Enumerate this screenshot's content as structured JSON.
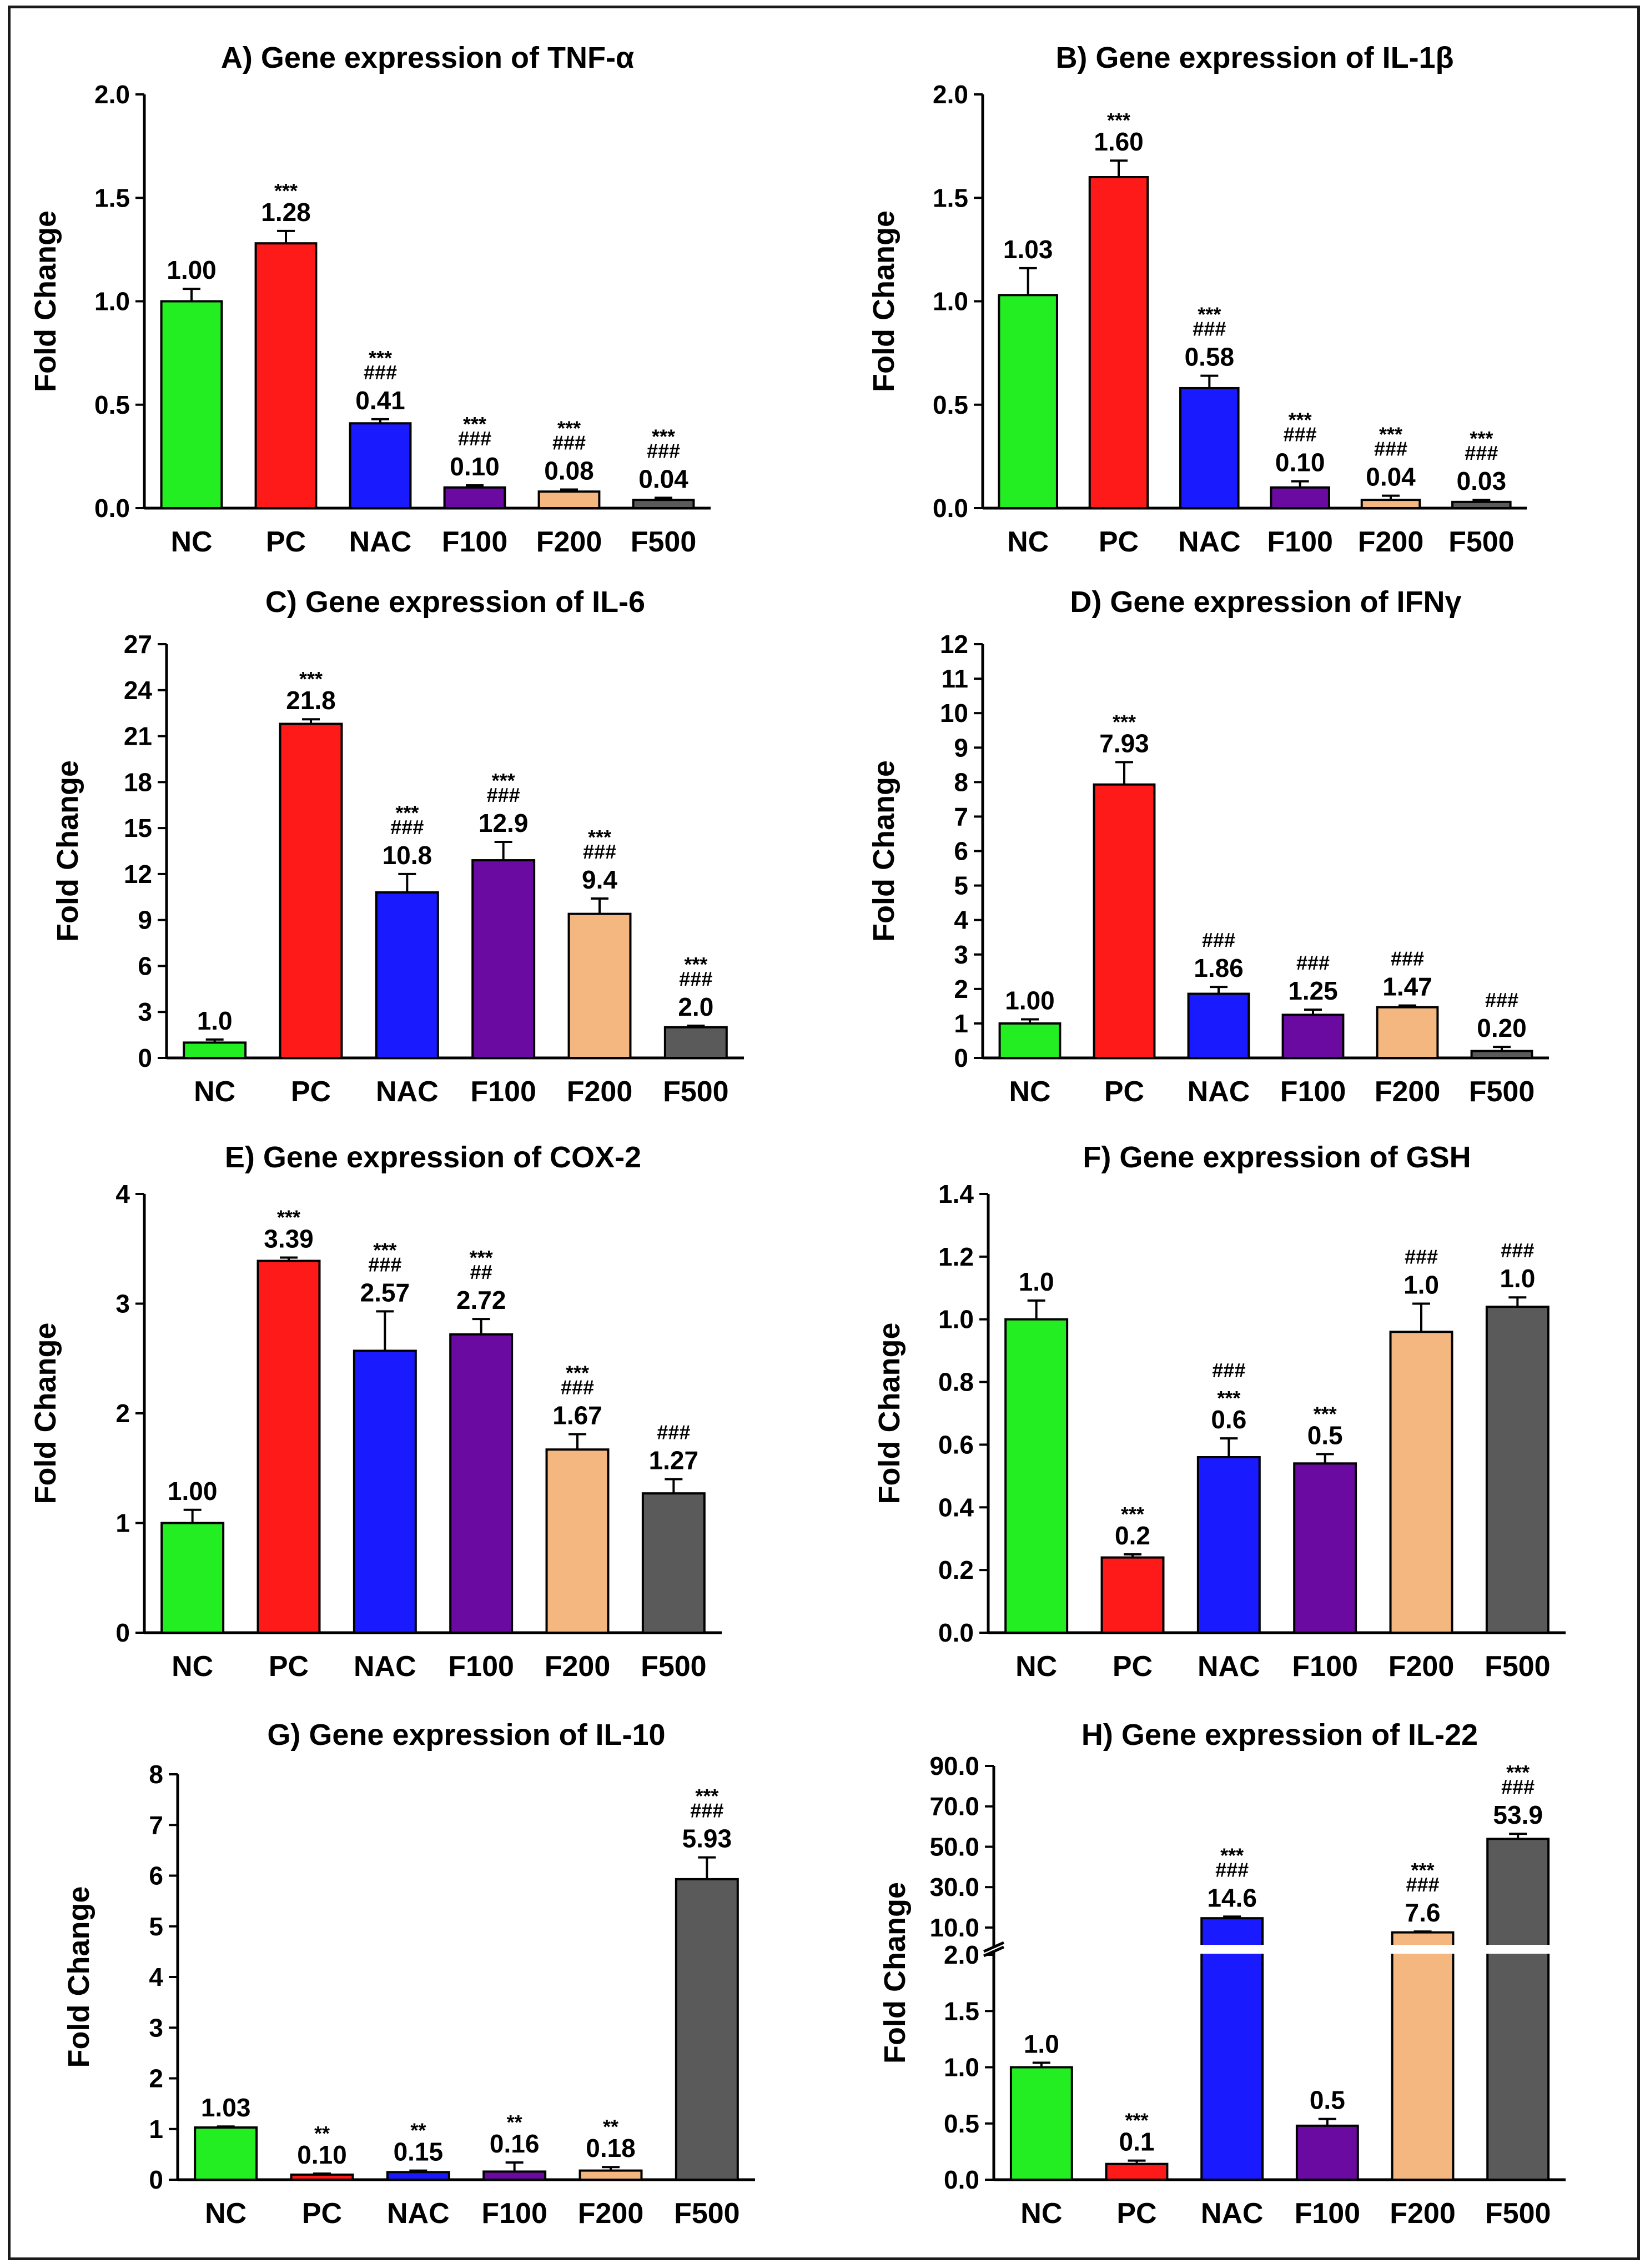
{
  "chart_data": [
    {
      "type": "bar",
      "panel": "A",
      "title": "A) Gene expression of TNF-α",
      "ylabel": "Fold Change",
      "categories": [
        "NC",
        "PC",
        "NAC",
        "F100",
        "F200",
        "F500"
      ],
      "values": [
        1.0,
        1.28,
        0.41,
        0.1,
        0.08,
        0.04
      ],
      "errors": [
        0.06,
        0.06,
        0.02,
        0.01,
        0.01,
        0.01
      ],
      "labels": [
        "1.00",
        "1.28",
        "0.41",
        "0.10",
        "0.08",
        "0.04"
      ],
      "significance": [
        [],
        [
          "***"
        ],
        [
          "***",
          "###"
        ],
        [
          "***",
          "###"
        ],
        [
          "***",
          "###"
        ],
        [
          "***",
          "###"
        ]
      ],
      "ylim": [
        0,
        2.0
      ],
      "yticks": [
        "0.0",
        "0.5",
        "1.0",
        "1.5",
        "2.0"
      ]
    },
    {
      "type": "bar",
      "panel": "B",
      "title": "B) Gene expression of IL-1β",
      "ylabel": "Fold Change",
      "categories": [
        "NC",
        "PC",
        "NAC",
        "F100",
        "F200",
        "F500"
      ],
      "values": [
        1.03,
        1.6,
        0.58,
        0.1,
        0.04,
        0.03
      ],
      "errors": [
        0.13,
        0.08,
        0.06,
        0.03,
        0.02,
        0.01
      ],
      "labels": [
        "1.03",
        "1.60",
        "0.58",
        "0.10",
        "0.04",
        "0.03"
      ],
      "significance": [
        [],
        [
          "***"
        ],
        [
          "***",
          "###"
        ],
        [
          "***",
          "###"
        ],
        [
          "***",
          "###"
        ],
        [
          "***",
          "###"
        ]
      ],
      "ylim": [
        0,
        2.0
      ],
      "yticks": [
        "0.0",
        "0.5",
        "1.0",
        "1.5",
        "2.0"
      ]
    },
    {
      "type": "bar",
      "panel": "C",
      "title": "C) Gene expression of IL-6",
      "ylabel": "Fold Change",
      "categories": [
        "NC",
        "PC",
        "NAC",
        "F100",
        "F200",
        "F500"
      ],
      "values": [
        1.0,
        21.8,
        10.8,
        12.9,
        9.4,
        2.0
      ],
      "errors": [
        0.2,
        0.3,
        1.2,
        1.2,
        1.0,
        0.1
      ],
      "labels": [
        "1.0",
        "21.8",
        "10.8",
        "12.9",
        "9.4",
        "2.0"
      ],
      "significance": [
        [],
        [
          "***"
        ],
        [
          "***",
          "###"
        ],
        [
          "***",
          "###"
        ],
        [
          "***",
          "###"
        ],
        [
          "***",
          "###"
        ]
      ],
      "ylim": [
        0,
        27
      ],
      "yticks": [
        "0",
        "3",
        "6",
        "9",
        "12",
        "15",
        "18",
        "21",
        "24",
        "27"
      ]
    },
    {
      "type": "bar",
      "panel": "D",
      "title": "D) Gene expression of IFNγ",
      "ylabel": "Fold Change",
      "categories": [
        "NC",
        "PC",
        "NAC",
        "F100",
        "F200",
        "F500"
      ],
      "values": [
        1.0,
        7.93,
        1.86,
        1.25,
        1.47,
        0.2
      ],
      "errors": [
        0.12,
        0.65,
        0.2,
        0.15,
        0.05,
        0.12
      ],
      "labels": [
        "1.00",
        "7.93",
        "1.86",
        "1.25",
        "1.47",
        "0.20"
      ],
      "significance": [
        [],
        [
          "***"
        ],
        [
          "###"
        ],
        [
          "###"
        ],
        [
          "###"
        ],
        [
          "###"
        ]
      ],
      "ylim": [
        0,
        12
      ],
      "yticks": [
        "0",
        "1",
        "2",
        "3",
        "4",
        "5",
        "6",
        "7",
        "8",
        "9",
        "10",
        "11",
        "12"
      ]
    },
    {
      "type": "bar",
      "panel": "E",
      "title": "E) Gene expression of COX-2",
      "ylabel": "Fold Change",
      "categories": [
        "NC",
        "PC",
        "NAC",
        "F100",
        "F200",
        "F500"
      ],
      "values": [
        1.0,
        3.39,
        2.57,
        2.72,
        1.67,
        1.27
      ],
      "errors": [
        0.12,
        0.03,
        0.36,
        0.14,
        0.14,
        0.13
      ],
      "labels": [
        "1.00",
        "3.39",
        "2.57",
        "2.72",
        "1.67",
        "1.27"
      ],
      "significance": [
        [],
        [
          "***"
        ],
        [
          "***",
          "###"
        ],
        [
          "***",
          "##"
        ],
        [
          "***",
          "###"
        ],
        [
          "###"
        ]
      ],
      "ylim": [
        0,
        4
      ],
      "yticks": [
        "0",
        "1",
        "2",
        "3",
        "4"
      ]
    },
    {
      "type": "bar",
      "panel": "F",
      "title": "F) Gene expression of GSH",
      "ylabel": "Fold Change",
      "categories": [
        "NC",
        "PC",
        "NAC",
        "F100",
        "F200",
        "F500"
      ],
      "values": [
        1.0,
        0.24,
        0.56,
        0.54,
        0.96,
        1.04
      ],
      "errors": [
        0.06,
        0.01,
        0.06,
        0.03,
        0.09,
        0.03
      ],
      "labels": [
        "1.0",
        "0.2",
        "0.6",
        "0.5",
        "1.0",
        "1.0"
      ],
      "significance": [
        [],
        [
          "***"
        ],
        [
          "###",
          "***"
        ],
        [
          "***"
        ],
        [
          "###"
        ],
        [
          "###"
        ]
      ],
      "ylim": [
        0,
        1.4
      ],
      "yticks": [
        "0.0",
        "0.2",
        "0.4",
        "0.6",
        "0.8",
        "1.0",
        "1.2",
        "1.4"
      ]
    },
    {
      "type": "bar",
      "panel": "G",
      "title": "G) Gene expression of IL-10",
      "ylabel": "Fold Change",
      "categories": [
        "NC",
        "PC",
        "NAC",
        "F100",
        "F200",
        "F500"
      ],
      "values": [
        1.03,
        0.1,
        0.15,
        0.16,
        0.18,
        5.93
      ],
      "errors": [
        0.02,
        0.02,
        0.03,
        0.18,
        0.07,
        0.43
      ],
      "labels": [
        "1.03",
        "0.10",
        "0.15",
        "0.16",
        "0.18",
        "5.93"
      ],
      "significance": [
        [],
        [
          "**"
        ],
        [
          "**"
        ],
        [
          "**"
        ],
        [
          "**"
        ],
        [
          "***",
          "###"
        ]
      ],
      "ylim": [
        0,
        8
      ],
      "yticks": [
        "0",
        "1",
        "2",
        "3",
        "4",
        "5",
        "6",
        "7",
        "8"
      ]
    },
    {
      "type": "bar",
      "panel": "H",
      "axis_break": true,
      "title": "H) Gene expression of IL-22",
      "ylabel": "Fold Change",
      "categories": [
        "NC",
        "PC",
        "NAC",
        "F100",
        "F200",
        "F500"
      ],
      "values": [
        1.0,
        0.14,
        14.6,
        0.48,
        7.6,
        53.9
      ],
      "errors": [
        0.04,
        0.03,
        0.8,
        0.06,
        0.4,
        2.5
      ],
      "labels": [
        "1.0",
        "0.1",
        "14.6",
        "0.5",
        "7.6",
        "53.9"
      ],
      "significance": [
        [],
        [
          "***"
        ],
        [
          "***",
          "###"
        ],
        [],
        [
          "***",
          "###"
        ],
        [
          "***",
          "###"
        ]
      ],
      "lower_ylim": [
        0,
        2.0
      ],
      "lower_yticks": [
        "0.0",
        "0.5",
        "1.0",
        "1.5",
        "2.0"
      ],
      "upper_ylim": [
        2.0,
        90.0
      ],
      "upper_yticks": [
        "10.0",
        "30.0",
        "50.0",
        "70.0",
        "90.0"
      ]
    }
  ],
  "colors": {
    "NC": "#22ee22",
    "PC": "#ff1a1a",
    "NAC": "#1a1aff",
    "F100": "#6a0aa0",
    "F200": "#f4b77f",
    "F500": "#5a5a5a"
  }
}
